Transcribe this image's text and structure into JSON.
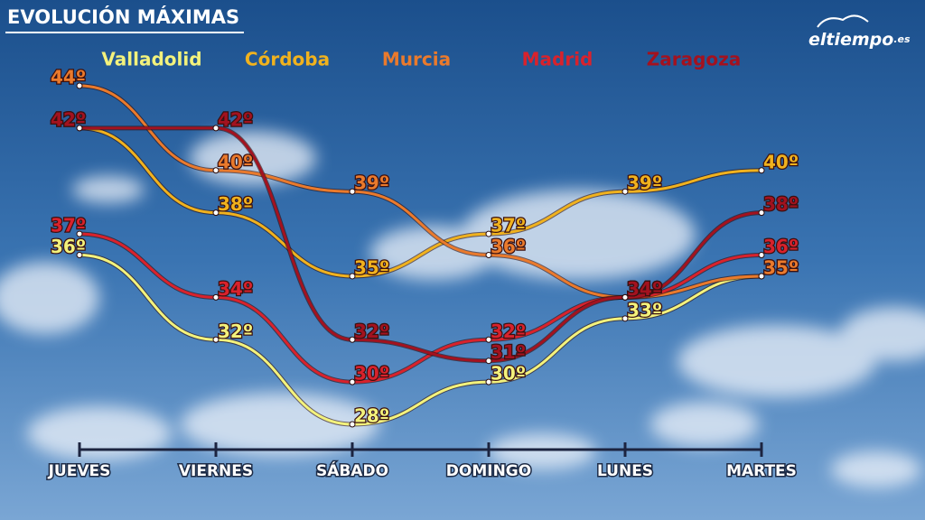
{
  "header": {
    "title": "EVOLUCIÓN MÁXIMAS",
    "logo": "eltiempo",
    "logo_suffix": ".es"
  },
  "chart_data": {
    "type": "line",
    "categories": [
      "JUEVES",
      "VIERNES",
      "SÁBADO",
      "DOMINGO",
      "LUNES",
      "MARTES"
    ],
    "series": [
      {
        "name": "Valladolid",
        "color": "#f3f27c",
        "values": [
          36,
          32,
          28,
          30,
          33,
          35
        ],
        "value_labels": [
          "36º",
          "32º",
          "28º",
          "30º",
          "33º",
          "35º"
        ]
      },
      {
        "name": "Córdoba",
        "color": "#f0b21e",
        "values": [
          42,
          38,
          35,
          37,
          39,
          40
        ],
        "value_labels": [
          "42º",
          "38º",
          "35º",
          "37º",
          "39º",
          "40º"
        ]
      },
      {
        "name": "Murcia",
        "color": "#ea7a2c",
        "values": [
          44,
          40,
          39,
          36,
          34,
          35
        ],
        "value_labels": [
          "44º",
          "40º",
          "39º",
          "36º",
          "34º",
          "35º"
        ]
      },
      {
        "name": "Madrid",
        "color": "#d9222c",
        "values": [
          37,
          34,
          30,
          32,
          34,
          36
        ],
        "value_labels": [
          "37º",
          "34º",
          "30º",
          "32º",
          "34º",
          "36º"
        ]
      },
      {
        "name": "Zaragoza",
        "color": "#a3121f",
        "values": [
          42,
          42,
          32,
          31,
          34,
          38
        ],
        "value_labels": [
          "42º",
          "42º",
          "32º",
          "31º",
          "34º",
          "38º"
        ]
      }
    ]
  }
}
